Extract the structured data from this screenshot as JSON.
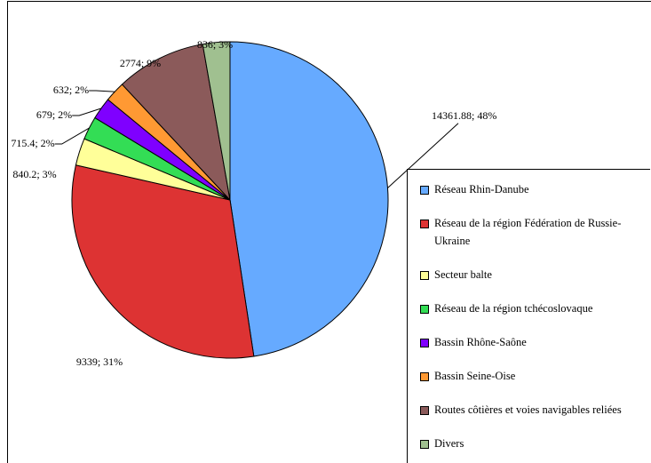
{
  "chart_data": {
    "type": "pie",
    "categories": [
      "Réseau Rhin-Danube",
      "Réseau de la région Fédération de Russie-Ukraine",
      "Secteur balte",
      "Réseau de la région tchécoslovaque",
      "Bassin Rhône-Saône",
      "Bassin Seine-Oise",
      "Routes côtières et voies navigables reliées",
      "Divers"
    ],
    "values": [
      14361.88,
      9339,
      840.2,
      715.4,
      679,
      632,
      2774,
      836
    ],
    "value_labels": [
      "14361.88; 48%",
      "9339; 31%",
      "840.2; 3%",
      "715.4; 2%",
      "679; 2%",
      "632; 2%",
      "2774; 9%",
      "836; 3%"
    ],
    "colors": [
      "#66aaff",
      "#dd3333",
      "#ffff99",
      "#33dd55",
      "#7f00ff",
      "#ff9933",
      "#8b5a5a",
      "#a0c090"
    ],
    "legend": "right"
  }
}
